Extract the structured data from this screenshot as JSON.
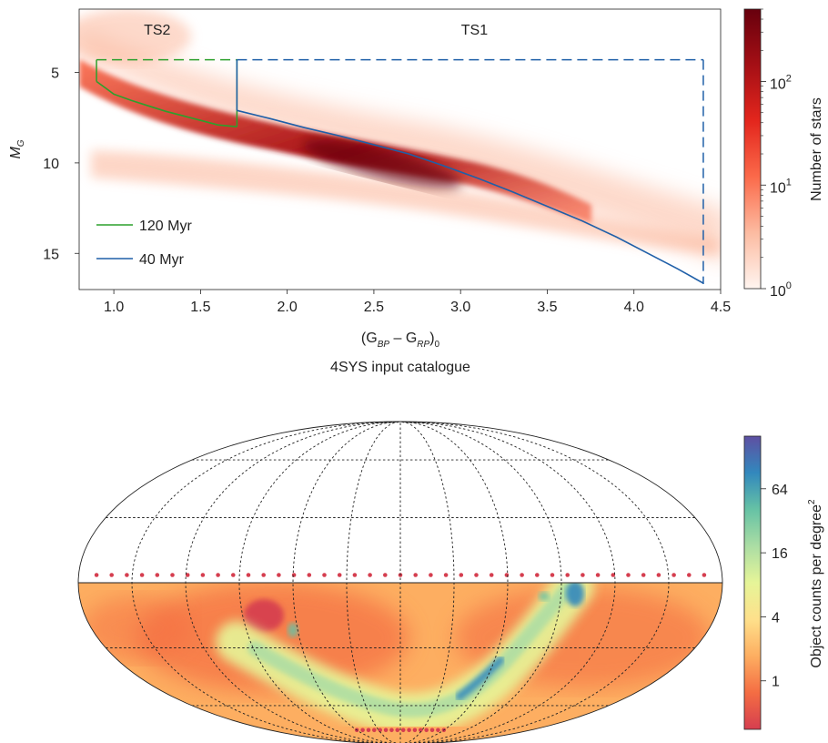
{
  "chart_data": [
    {
      "type": "heatmap",
      "title": "4SYS input catalogue",
      "xlabel": {
        "base": "(G",
        "bp": "BP",
        "minus": " – G",
        "rp": "RP",
        "close": ")",
        "zero": "0"
      },
      "ylabel": {
        "base": "M",
        "sub": "G"
      },
      "xlim": [
        0.8,
        4.5
      ],
      "ylim": [
        17,
        1.5
      ],
      "x_ticks": [
        1.0,
        1.5,
        2.0,
        2.5,
        3.0,
        3.5,
        4.0,
        4.5
      ],
      "x_tick_labels": [
        "1.0",
        "1.5",
        "2.0",
        "2.5",
        "3.0",
        "3.5",
        "4.0",
        "4.5"
      ],
      "y_ticks": [
        5,
        10,
        15
      ],
      "y_tick_labels": [
        "5",
        "10",
        "15"
      ],
      "region_labels": [
        {
          "text": "TS2",
          "x": 1.25,
          "y": 2.6
        },
        {
          "text": "TS1",
          "x": 3.08,
          "y": 2.6
        }
      ],
      "selection_boxes": [
        {
          "name": "TS2",
          "color": "#2ca02c",
          "dashed": true,
          "x": [
            0.9,
            1.71
          ],
          "y_top": 4.3
        },
        {
          "name": "TS1",
          "color": "#1f5fa8",
          "dashed": true,
          "x": [
            1.71,
            4.4
          ],
          "y_top": 4.3,
          "y_bottom": 16.7
        }
      ],
      "series": [
        {
          "name": "120 Myr",
          "color": "#2ca02c",
          "x": [
            0.9,
            0.95,
            1.0,
            1.1,
            1.2,
            1.3,
            1.4,
            1.5,
            1.6,
            1.71
          ],
          "y": [
            5.5,
            5.85,
            6.2,
            6.55,
            6.85,
            7.15,
            7.4,
            7.65,
            7.9,
            8.0
          ]
        },
        {
          "name": "40 Myr",
          "color": "#1f5fa8",
          "x": [
            1.71,
            1.9,
            2.1,
            2.3,
            2.5,
            2.7,
            2.9,
            3.1,
            3.3,
            3.5,
            3.7,
            3.9,
            4.1,
            4.25,
            4.4
          ],
          "y": [
            7.1,
            7.55,
            8.05,
            8.5,
            9.0,
            9.5,
            10.15,
            10.85,
            11.6,
            12.4,
            13.2,
            14.1,
            15.1,
            15.85,
            16.65
          ]
        }
      ],
      "density_color_scale": [
        "#fff5f0",
        "#fcbba1",
        "#fb6a4a",
        "#e3261d",
        "#a50f15",
        "#67000d"
      ],
      "colorbar": {
        "label": "Number of stars",
        "scale": "log",
        "range": [
          1,
          500
        ],
        "ticks": [
          {
            "value": 1,
            "base": "10",
            "exp": "0"
          },
          {
            "value": 10,
            "base": "10",
            "exp": "1"
          },
          {
            "value": 100,
            "base": "10",
            "exp": "2"
          }
        ]
      }
    },
    {
      "type": "heatmap",
      "projection": "mollweide",
      "coverage": "southern sky below declination about +5",
      "high_density_features": [
        "Galactic plane arc",
        "Magellanic Clouds region"
      ],
      "density_color_scale": [
        "#d53e4f",
        "#f46d43",
        "#fdae61",
        "#fee08b",
        "#e6f598",
        "#abdda4",
        "#66c2a5",
        "#3288bd",
        "#5e4fa2"
      ],
      "colorbar": {
        "label_base": "Object counts per degree",
        "label_sup": "2",
        "scale": "log",
        "range": [
          0.35,
          200
        ],
        "ticks": [
          {
            "value": 1,
            "label": "1"
          },
          {
            "value": 4,
            "label": "4"
          },
          {
            "value": 16,
            "label": "16"
          },
          {
            "value": 64,
            "label": "64"
          }
        ]
      }
    }
  ]
}
